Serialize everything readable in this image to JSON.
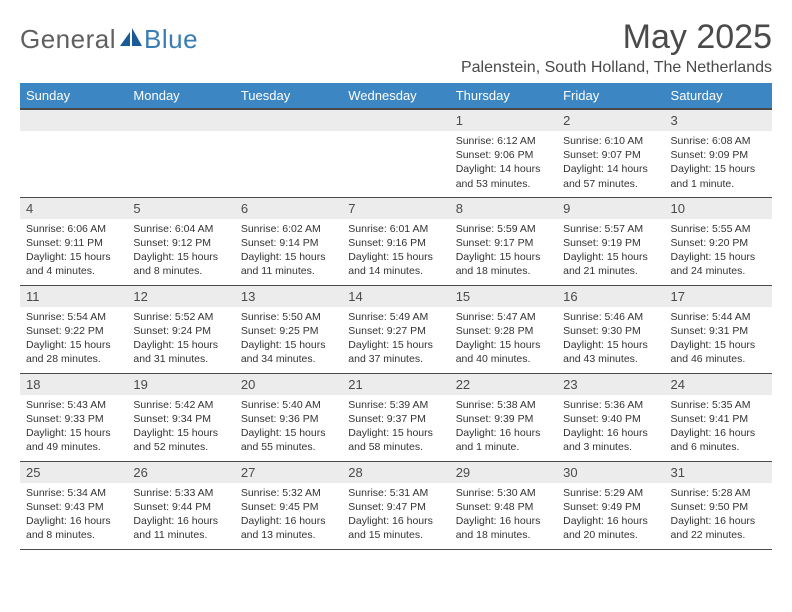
{
  "brand": {
    "text1": "General",
    "text2": "Blue",
    "color_general": "#606060",
    "color_blue": "#3a7db5",
    "icon_fill": "#1a5a99"
  },
  "title": "May 2025",
  "location": "Palenstein, South Holland, The Netherlands",
  "header_bg": "#3c86c3",
  "daynum_bg": "#ececec",
  "border_color": "#4a4a4a",
  "weekdays": [
    "Sunday",
    "Monday",
    "Tuesday",
    "Wednesday",
    "Thursday",
    "Friday",
    "Saturday"
  ],
  "weeks": [
    [
      {
        "day": "",
        "lines": []
      },
      {
        "day": "",
        "lines": []
      },
      {
        "day": "",
        "lines": []
      },
      {
        "day": "",
        "lines": []
      },
      {
        "day": "1",
        "lines": [
          "Sunrise: 6:12 AM",
          "Sunset: 9:06 PM",
          "Daylight: 14 hours",
          "and 53 minutes."
        ]
      },
      {
        "day": "2",
        "lines": [
          "Sunrise: 6:10 AM",
          "Sunset: 9:07 PM",
          "Daylight: 14 hours",
          "and 57 minutes."
        ]
      },
      {
        "day": "3",
        "lines": [
          "Sunrise: 6:08 AM",
          "Sunset: 9:09 PM",
          "Daylight: 15 hours",
          "and 1 minute."
        ]
      }
    ],
    [
      {
        "day": "4",
        "lines": [
          "Sunrise: 6:06 AM",
          "Sunset: 9:11 PM",
          "Daylight: 15 hours",
          "and 4 minutes."
        ]
      },
      {
        "day": "5",
        "lines": [
          "Sunrise: 6:04 AM",
          "Sunset: 9:12 PM",
          "Daylight: 15 hours",
          "and 8 minutes."
        ]
      },
      {
        "day": "6",
        "lines": [
          "Sunrise: 6:02 AM",
          "Sunset: 9:14 PM",
          "Daylight: 15 hours",
          "and 11 minutes."
        ]
      },
      {
        "day": "7",
        "lines": [
          "Sunrise: 6:01 AM",
          "Sunset: 9:16 PM",
          "Daylight: 15 hours",
          "and 14 minutes."
        ]
      },
      {
        "day": "8",
        "lines": [
          "Sunrise: 5:59 AM",
          "Sunset: 9:17 PM",
          "Daylight: 15 hours",
          "and 18 minutes."
        ]
      },
      {
        "day": "9",
        "lines": [
          "Sunrise: 5:57 AM",
          "Sunset: 9:19 PM",
          "Daylight: 15 hours",
          "and 21 minutes."
        ]
      },
      {
        "day": "10",
        "lines": [
          "Sunrise: 5:55 AM",
          "Sunset: 9:20 PM",
          "Daylight: 15 hours",
          "and 24 minutes."
        ]
      }
    ],
    [
      {
        "day": "11",
        "lines": [
          "Sunrise: 5:54 AM",
          "Sunset: 9:22 PM",
          "Daylight: 15 hours",
          "and 28 minutes."
        ]
      },
      {
        "day": "12",
        "lines": [
          "Sunrise: 5:52 AM",
          "Sunset: 9:24 PM",
          "Daylight: 15 hours",
          "and 31 minutes."
        ]
      },
      {
        "day": "13",
        "lines": [
          "Sunrise: 5:50 AM",
          "Sunset: 9:25 PM",
          "Daylight: 15 hours",
          "and 34 minutes."
        ]
      },
      {
        "day": "14",
        "lines": [
          "Sunrise: 5:49 AM",
          "Sunset: 9:27 PM",
          "Daylight: 15 hours",
          "and 37 minutes."
        ]
      },
      {
        "day": "15",
        "lines": [
          "Sunrise: 5:47 AM",
          "Sunset: 9:28 PM",
          "Daylight: 15 hours",
          "and 40 minutes."
        ]
      },
      {
        "day": "16",
        "lines": [
          "Sunrise: 5:46 AM",
          "Sunset: 9:30 PM",
          "Daylight: 15 hours",
          "and 43 minutes."
        ]
      },
      {
        "day": "17",
        "lines": [
          "Sunrise: 5:44 AM",
          "Sunset: 9:31 PM",
          "Daylight: 15 hours",
          "and 46 minutes."
        ]
      }
    ],
    [
      {
        "day": "18",
        "lines": [
          "Sunrise: 5:43 AM",
          "Sunset: 9:33 PM",
          "Daylight: 15 hours",
          "and 49 minutes."
        ]
      },
      {
        "day": "19",
        "lines": [
          "Sunrise: 5:42 AM",
          "Sunset: 9:34 PM",
          "Daylight: 15 hours",
          "and 52 minutes."
        ]
      },
      {
        "day": "20",
        "lines": [
          "Sunrise: 5:40 AM",
          "Sunset: 9:36 PM",
          "Daylight: 15 hours",
          "and 55 minutes."
        ]
      },
      {
        "day": "21",
        "lines": [
          "Sunrise: 5:39 AM",
          "Sunset: 9:37 PM",
          "Daylight: 15 hours",
          "and 58 minutes."
        ]
      },
      {
        "day": "22",
        "lines": [
          "Sunrise: 5:38 AM",
          "Sunset: 9:39 PM",
          "Daylight: 16 hours",
          "and 1 minute."
        ]
      },
      {
        "day": "23",
        "lines": [
          "Sunrise: 5:36 AM",
          "Sunset: 9:40 PM",
          "Daylight: 16 hours",
          "and 3 minutes."
        ]
      },
      {
        "day": "24",
        "lines": [
          "Sunrise: 5:35 AM",
          "Sunset: 9:41 PM",
          "Daylight: 16 hours",
          "and 6 minutes."
        ]
      }
    ],
    [
      {
        "day": "25",
        "lines": [
          "Sunrise: 5:34 AM",
          "Sunset: 9:43 PM",
          "Daylight: 16 hours",
          "and 8 minutes."
        ]
      },
      {
        "day": "26",
        "lines": [
          "Sunrise: 5:33 AM",
          "Sunset: 9:44 PM",
          "Daylight: 16 hours",
          "and 11 minutes."
        ]
      },
      {
        "day": "27",
        "lines": [
          "Sunrise: 5:32 AM",
          "Sunset: 9:45 PM",
          "Daylight: 16 hours",
          "and 13 minutes."
        ]
      },
      {
        "day": "28",
        "lines": [
          "Sunrise: 5:31 AM",
          "Sunset: 9:47 PM",
          "Daylight: 16 hours",
          "and 15 minutes."
        ]
      },
      {
        "day": "29",
        "lines": [
          "Sunrise: 5:30 AM",
          "Sunset: 9:48 PM",
          "Daylight: 16 hours",
          "and 18 minutes."
        ]
      },
      {
        "day": "30",
        "lines": [
          "Sunrise: 5:29 AM",
          "Sunset: 9:49 PM",
          "Daylight: 16 hours",
          "and 20 minutes."
        ]
      },
      {
        "day": "31",
        "lines": [
          "Sunrise: 5:28 AM",
          "Sunset: 9:50 PM",
          "Daylight: 16 hours",
          "and 22 minutes."
        ]
      }
    ]
  ]
}
